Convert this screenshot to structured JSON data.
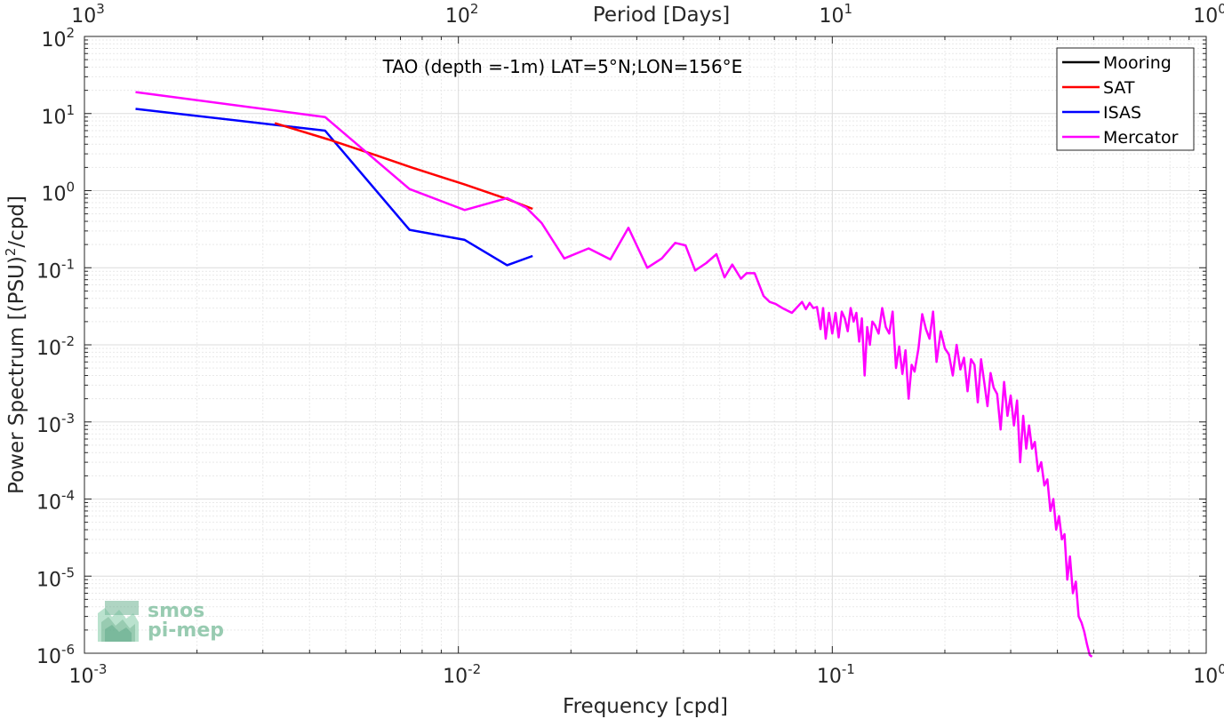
{
  "chart_data": {
    "type": "line",
    "title": "TAO (depth =-1m) LAT=5°N;LON=156°E",
    "xlabel": "Frequency [cpd]",
    "ylabel": "Power Spectrum [(PSU)",
    "ylabel_sup": "2",
    "ylabel_tail": "/cpd]",
    "top_xlabel": "Period [Days]",
    "x_scale": "log",
    "y_scale": "log",
    "xlim": [
      0.001,
      1
    ],
    "ylim": [
      1e-06,
      100
    ],
    "grid": true,
    "legend_position": "top-right",
    "x_ticks": [
      {
        "base": "10",
        "exp": "-3"
      },
      {
        "base": "10",
        "exp": "-2"
      },
      {
        "base": "10",
        "exp": "-1"
      },
      {
        "base": "10",
        "exp": "0"
      }
    ],
    "y_ticks": [
      {
        "base": "10",
        "exp": "-6"
      },
      {
        "base": "10",
        "exp": "-5"
      },
      {
        "base": "10",
        "exp": "-4"
      },
      {
        "base": "10",
        "exp": "-3"
      },
      {
        "base": "10",
        "exp": "-2"
      },
      {
        "base": "10",
        "exp": "-1"
      },
      {
        "base": "10",
        "exp": "0"
      },
      {
        "base": "10",
        "exp": "1"
      },
      {
        "base": "10",
        "exp": "2"
      }
    ],
    "top_ticks": [
      {
        "base": "10",
        "exp": "3"
      },
      {
        "base": "10",
        "exp": "2"
      },
      {
        "base": "10",
        "exp": "1"
      },
      {
        "base": "10",
        "exp": "0"
      }
    ],
    "series": [
      {
        "name": "Mooring",
        "color": "#000000",
        "x": [],
        "y": []
      },
      {
        "name": "SAT",
        "color": "#ff0000",
        "x": [
          0.00323,
          0.0045,
          0.006,
          0.0075,
          0.0104,
          0.0135,
          0.0158
        ],
        "y": [
          7.5,
          4.6,
          2.9,
          2.0,
          1.2,
          0.78,
          0.58
        ]
      },
      {
        "name": "ISAS",
        "color": "#0000ff",
        "x": [
          0.00137,
          0.0044,
          0.0074,
          0.0104,
          0.0135,
          0.0158
        ],
        "y": [
          11.5,
          6.0,
          0.31,
          0.23,
          0.108,
          0.142
        ]
      },
      {
        "name": "Mercator",
        "color": "#ff00ff",
        "x": [
          0.00137,
          0.0044,
          0.0074,
          0.0104,
          0.0135,
          0.0152,
          0.0167,
          0.0192,
          0.0223,
          0.0255,
          0.0285,
          0.032,
          0.035,
          0.038,
          0.0405,
          0.043,
          0.046,
          0.049,
          0.0515,
          0.054,
          0.057,
          0.059,
          0.062,
          0.0655,
          0.068,
          0.0705,
          0.0735,
          0.078,
          0.083,
          0.085,
          0.087,
          0.089,
          0.091,
          0.093,
          0.0945,
          0.096,
          0.098,
          0.1,
          0.102,
          0.104,
          0.106,
          0.108,
          0.11,
          0.112,
          0.114,
          0.116,
          0.118,
          0.12,
          0.122,
          0.124,
          0.126,
          0.128,
          0.13,
          0.133,
          0.136,
          0.139,
          0.142,
          0.145,
          0.148,
          0.151,
          0.154,
          0.157,
          0.16,
          0.163,
          0.166,
          0.17,
          0.174,
          0.178,
          0.182,
          0.186,
          0.19,
          0.195,
          0.2,
          0.205,
          0.21,
          0.215,
          0.22,
          0.225,
          0.23,
          0.235,
          0.24,
          0.245,
          0.25,
          0.255,
          0.26,
          0.265,
          0.27,
          0.276,
          0.282,
          0.288,
          0.294,
          0.3,
          0.306,
          0.312,
          0.318,
          0.324,
          0.33,
          0.336,
          0.342,
          0.348,
          0.355,
          0.362,
          0.369,
          0.376,
          0.383,
          0.39,
          0.397,
          0.404,
          0.411,
          0.418,
          0.425,
          0.432,
          0.44,
          0.448,
          0.456,
          0.464,
          0.472,
          0.48,
          0.488,
          0.495
        ],
        "y": [
          19,
          9.0,
          1.05,
          0.56,
          0.8,
          0.6,
          0.38,
          0.132,
          0.178,
          0.128,
          0.33,
          0.1,
          0.132,
          0.21,
          0.195,
          0.092,
          0.115,
          0.15,
          0.075,
          0.11,
          0.072,
          0.085,
          0.085,
          0.043,
          0.036,
          0.034,
          0.03,
          0.026,
          0.036,
          0.029,
          0.035,
          0.03,
          0.031,
          0.016,
          0.03,
          0.012,
          0.026,
          0.014,
          0.026,
          0.0125,
          0.027,
          0.022,
          0.015,
          0.03,
          0.02,
          0.026,
          0.011,
          0.022,
          0.004,
          0.017,
          0.01,
          0.02,
          0.018,
          0.014,
          0.03,
          0.017,
          0.014,
          0.027,
          0.005,
          0.0095,
          0.0042,
          0.0085,
          0.002,
          0.0055,
          0.0045,
          0.009,
          0.025,
          0.016,
          0.012,
          0.027,
          0.006,
          0.015,
          0.009,
          0.0075,
          0.004,
          0.01,
          0.0048,
          0.0068,
          0.0025,
          0.0065,
          0.0055,
          0.0018,
          0.0065,
          0.0032,
          0.0016,
          0.0043,
          0.0028,
          0.0023,
          0.0008,
          0.0033,
          0.0012,
          0.0022,
          0.0009,
          0.0019,
          0.0003,
          0.0012,
          0.00045,
          0.0009,
          0.00045,
          0.00055,
          0.00023,
          0.0003,
          0.00015,
          0.00018,
          7e-05,
          0.0001,
          4e-05,
          6e-05,
          3e-05,
          3.5e-05,
          9e-06,
          1.8e-05,
          6e-06,
          8.5e-06,
          3e-06,
          2.5e-06,
          1.9e-06,
          1.3e-06,
          9.5e-07,
          9e-07
        ]
      }
    ]
  },
  "logo": {
    "line1": "smos",
    "line2": "pi-mep"
  }
}
